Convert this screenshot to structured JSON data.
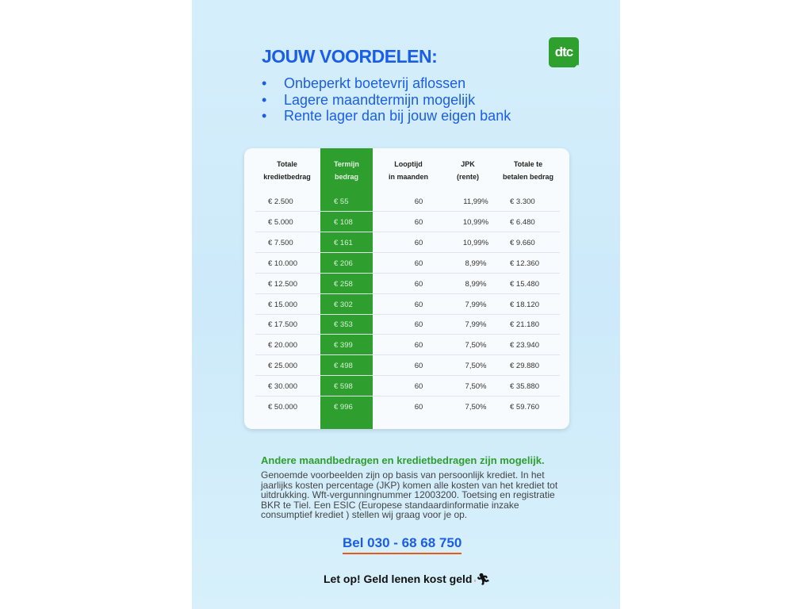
{
  "title": "JOUW VOORDELEN:",
  "logo_text": "dtc",
  "bullets": [
    "Onbeperkt boetevrij aflossen",
    "Lagere maandtermijn mogelijk",
    "Rente lager dan bij jouw eigen bank"
  ],
  "table": {
    "headers": [
      [
        "Totale",
        "kredietbedrag"
      ],
      [
        "Termijn",
        "bedrag"
      ],
      [
        "Looptijd",
        "in maanden"
      ],
      [
        "JPK",
        "(rente)"
      ],
      [
        "Totale te",
        "betalen bedrag"
      ]
    ],
    "rows": [
      [
        "€ 2.500",
        "€ 55",
        "60",
        "11,99%",
        "€ 3.300"
      ],
      [
        "€ 5.000",
        "€ 108",
        "60",
        "10,99%",
        "€ 6.480"
      ],
      [
        "€ 7.500",
        "€ 161",
        "60",
        "10,99%",
        "€ 9.660"
      ],
      [
        "€ 10.000",
        "€ 206",
        "60",
        "8,99%",
        "€ 12.360"
      ],
      [
        "€ 12.500",
        "€ 258",
        "60",
        "8,99%",
        "€ 15.480"
      ],
      [
        "€ 15.000",
        "€ 302",
        "60",
        "7,99%",
        "€ 18.120"
      ],
      [
        "€ 17.500",
        "€ 353",
        "60",
        "7,99%",
        "€ 21.180"
      ],
      [
        "€ 20.000",
        "€ 399",
        "60",
        "7,50%",
        "€ 23.940"
      ],
      [
        "€ 25.000",
        "€ 498",
        "60",
        "7,50%",
        "€ 29.880"
      ],
      [
        "€ 30.000",
        "€ 598",
        "60",
        "7,50%",
        "€ 35.880"
      ],
      [
        "€ 50.000",
        "€ 996",
        "60",
        "7,50%",
        "€ 59.760"
      ]
    ]
  },
  "note_heading": "Andere maandbedragen en kredietbedragen zijn mogelijk.",
  "note_body": "Genoemde voorbeelden zijn op basis van persoonlijk krediet. In het jaarlijks kosten percentage (JKP) komen alle kosten van het krediet tot uitdrukking. Wft-vergunningnummer 12003200. Toetsing en registratie BKR te Tiel. Een ESIC (Europese standaardinformatie inzake consumptief krediet ) stellen wij graag voor je op.",
  "phone": "Bel 030 - 68 68 750",
  "warning": "Let op! Geld lenen kost geld",
  "colors": {
    "blue": "#1a5ee8",
    "green": "#2e9e2e",
    "underline": "#e85a1a"
  }
}
